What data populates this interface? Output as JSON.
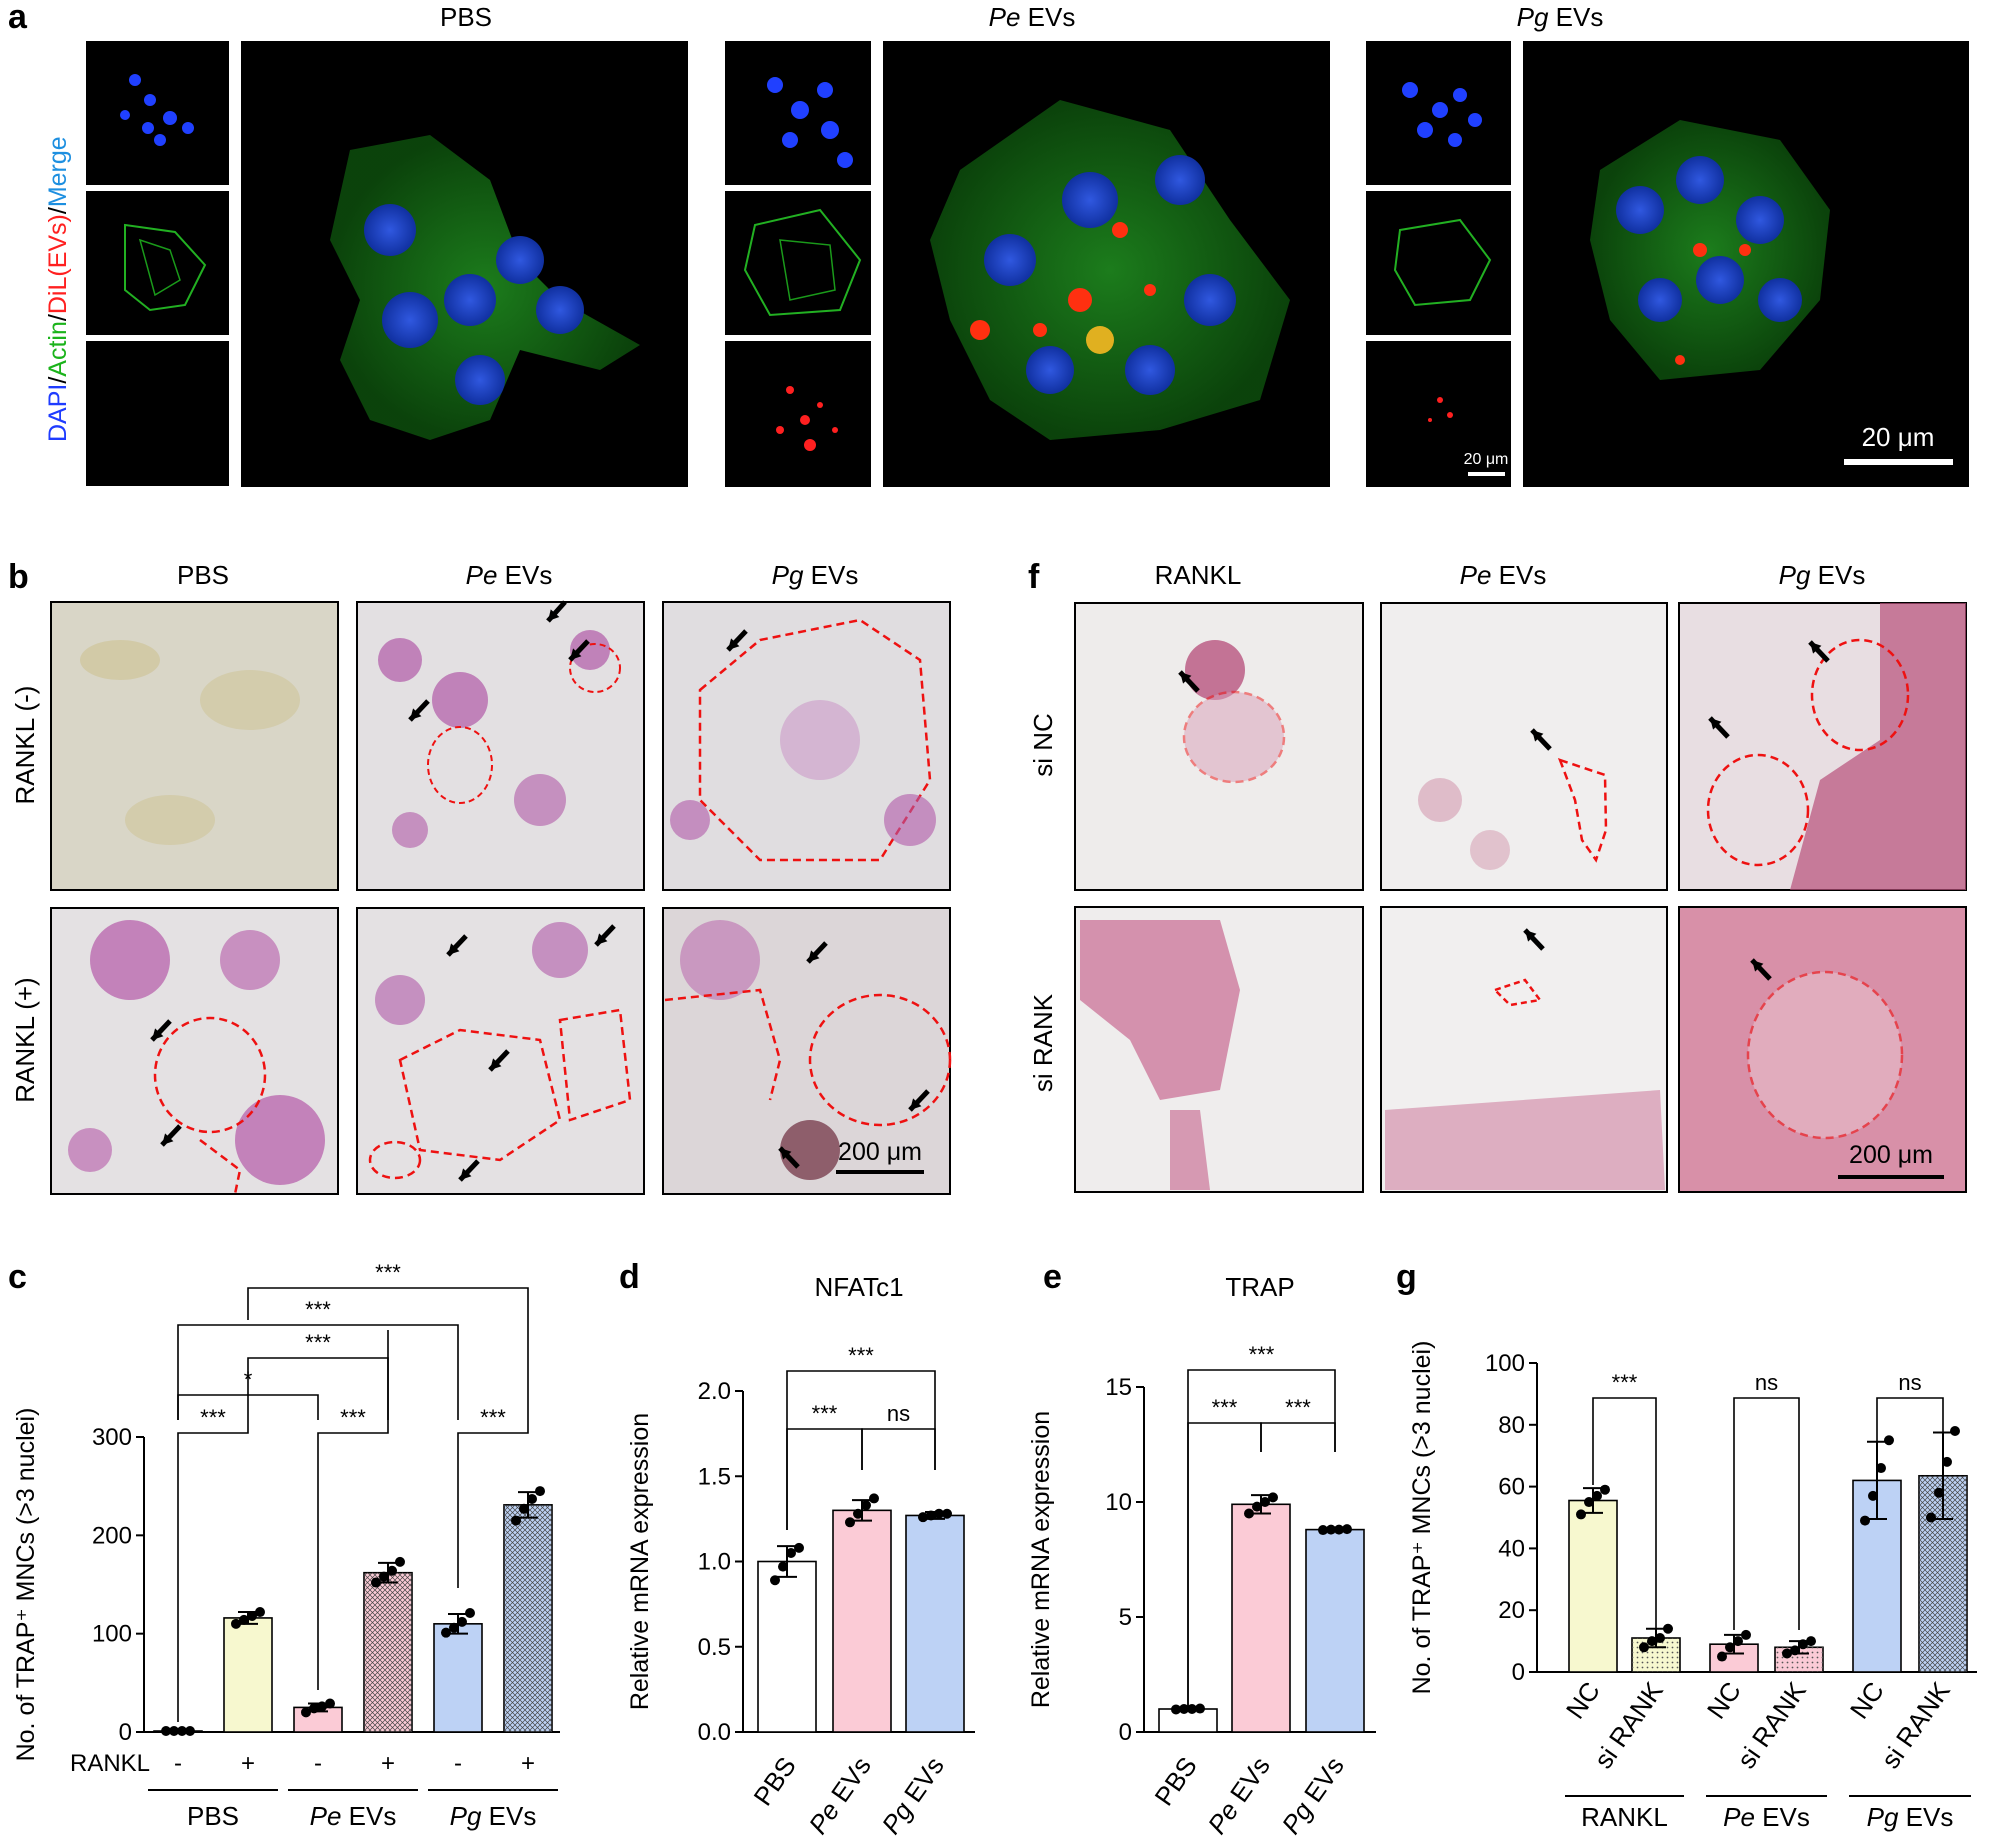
{
  "panel_a": {
    "letter": "a",
    "conditions": [
      {
        "org": "",
        "rest": "PBS"
      },
      {
        "org": "Pe",
        "rest": " EVs"
      },
      {
        "org": "Pg",
        "rest": " EVs"
      }
    ],
    "stain_label": {
      "dapi": "DAPI",
      "s1": "/",
      "actin": "Actin",
      "s2": "/",
      "dil": "DiL(EVs)",
      "s3": "/",
      "merge": "Merge"
    },
    "scale_small": "20 μm",
    "scale_large": "20 μm"
  },
  "panel_b": {
    "letter": "b",
    "columns": [
      {
        "org": "",
        "rest": "PBS"
      },
      {
        "org": "Pe",
        "rest": " EVs"
      },
      {
        "org": "Pg",
        "rest": " EVs"
      }
    ],
    "rows": [
      "RANKL (-)",
      "RANKL (+)"
    ],
    "scale": "200 μm"
  },
  "panel_f": {
    "letter": "f",
    "columns": [
      {
        "org": "",
        "rest": "RANKL"
      },
      {
        "org": "Pe",
        "rest": " EVs"
      },
      {
        "org": "Pg",
        "rest": " EVs"
      }
    ],
    "rows": [
      "si NC",
      "si RANK"
    ],
    "scale": "200 μm"
  },
  "colors": {
    "yellow": "#f7f8cf",
    "pink": "#fbcbd6",
    "blue": "#bdd2f5",
    "white": "#ffffff",
    "dapi": "#1f3cff",
    "actin": "#1bb31b",
    "dil": "#ff2020",
    "merge": "#1d8fe0"
  },
  "chart_data": [
    {
      "panel": "c",
      "type": "bar",
      "title": "",
      "ylabel": "No. of TRAP⁺ MNCs (>3 nuclei)",
      "ylim": [
        0,
        300
      ],
      "yticks": [
        "0",
        "100",
        "200",
        "300"
      ],
      "row_label": "RANKL",
      "rankl_signs": [
        "-",
        "+",
        "-",
        "+",
        "-",
        "+"
      ],
      "groups": [
        {
          "org": "",
          "rest": "PBS"
        },
        {
          "org": "Pe",
          "rest": " EVs"
        },
        {
          "org": "Pg",
          "rest": " EVs"
        }
      ],
      "bars": [
        {
          "value": 1,
          "sd": 0,
          "points": [
            1,
            1,
            1,
            1
          ],
          "color": "#ffffff",
          "pattern": "none"
        },
        {
          "value": 116,
          "sd": 6,
          "points": [
            110,
            114,
            118,
            122
          ],
          "color": "#f7f8cf",
          "pattern": "none"
        },
        {
          "value": 25,
          "sd": 4,
          "points": [
            20,
            24,
            26,
            29
          ],
          "color": "#fbcbd6",
          "pattern": "none"
        },
        {
          "value": 162,
          "sd": 10,
          "points": [
            152,
            158,
            164,
            173
          ],
          "color": "#fbcbd6",
          "pattern": "cross"
        },
        {
          "value": 110,
          "sd": 10,
          "points": [
            101,
            106,
            112,
            121
          ],
          "color": "#bdd2f5",
          "pattern": "none"
        },
        {
          "value": 231,
          "sd": 13,
          "points": [
            215,
            227,
            237,
            245
          ],
          "color": "#bdd2f5",
          "pattern": "cross"
        }
      ],
      "significance": [
        {
          "a": 0,
          "b": 1,
          "label": "***"
        },
        {
          "a": 2,
          "b": 3,
          "label": "***"
        },
        {
          "a": 4,
          "b": 5,
          "label": "***"
        },
        {
          "a": 0,
          "b": 2,
          "label": "*"
        },
        {
          "a": 1,
          "b": 3,
          "label": "***"
        },
        {
          "a": 0,
          "b": 4,
          "label": "***"
        },
        {
          "a": 1,
          "b": 5,
          "label": "***"
        }
      ]
    },
    {
      "panel": "d",
      "type": "bar",
      "title": "NFATc1",
      "ylabel": "Relative mRNA expression",
      "ylim": [
        0,
        2.0
      ],
      "yticks": [
        "0.0",
        "0.5",
        "1.0",
        "1.5",
        "2.0"
      ],
      "categories": [
        {
          "org": "",
          "rest": "PBS"
        },
        {
          "org": "Pe",
          "rest": " EVs"
        },
        {
          "org": "Pg",
          "rest": " EVs"
        }
      ],
      "bars": [
        {
          "value": 1.0,
          "sd": 0.09,
          "points": [
            0.89,
            0.97,
            1.05,
            1.08
          ],
          "color": "#ffffff"
        },
        {
          "value": 1.3,
          "sd": 0.06,
          "points": [
            1.23,
            1.28,
            1.33,
            1.37
          ],
          "color": "#fbcbd6"
        },
        {
          "value": 1.27,
          "sd": 0.02,
          "points": [
            1.26,
            1.27,
            1.28,
            1.28
          ],
          "color": "#bdd2f5"
        }
      ],
      "significance": [
        {
          "a": 0,
          "b": 1,
          "label": "***"
        },
        {
          "a": 1,
          "b": 2,
          "label": "ns"
        },
        {
          "a": 0,
          "b": 2,
          "label": "***"
        }
      ]
    },
    {
      "panel": "e",
      "type": "bar",
      "title": "TRAP",
      "ylabel": "Relative mRNA expression",
      "ylim": [
        0,
        15
      ],
      "yticks": [
        "0",
        "5",
        "10",
        "15"
      ],
      "categories": [
        {
          "org": "",
          "rest": "PBS"
        },
        {
          "org": "Pe",
          "rest": " EVs"
        },
        {
          "org": "Pg",
          "rest": " EVs"
        }
      ],
      "bars": [
        {
          "value": 1.0,
          "sd": 0.03,
          "points": [
            0.98,
            1.0,
            1.0,
            1.02
          ],
          "color": "#ffffff"
        },
        {
          "value": 9.9,
          "sd": 0.4,
          "points": [
            9.5,
            9.8,
            10.0,
            10.2
          ],
          "color": "#fbcbd6"
        },
        {
          "value": 8.8,
          "sd": 0.05,
          "points": [
            8.78,
            8.8,
            8.8,
            8.82
          ],
          "color": "#bdd2f5"
        }
      ],
      "significance": [
        {
          "a": 0,
          "b": 1,
          "label": "***"
        },
        {
          "a": 1,
          "b": 2,
          "label": "***"
        },
        {
          "a": 0,
          "b": 2,
          "label": "***"
        }
      ]
    },
    {
      "panel": "g",
      "type": "bar",
      "title": "",
      "ylabel": "No. of TRAP⁺ MNCs (>3 nuclei)",
      "ylim": [
        0,
        100
      ],
      "yticks": [
        "0",
        "20",
        "40",
        "60",
        "80",
        "100"
      ],
      "bar_labels": [
        "NC",
        "si RANK",
        "NC",
        "si RANK",
        "NC",
        "si RANK"
      ],
      "groups": [
        {
          "org": "",
          "rest": "RANKL"
        },
        {
          "org": "Pe",
          "rest": " EVs"
        },
        {
          "org": "Pg",
          "rest": " EVs"
        }
      ],
      "bars": [
        {
          "value": 55.5,
          "sd": 4,
          "points": [
            51,
            55,
            57,
            59
          ],
          "color": "#f7f8cf",
          "pattern": "none"
        },
        {
          "value": 11,
          "sd": 3,
          "points": [
            8,
            10,
            11,
            14
          ],
          "color": "#f7f8cf",
          "pattern": "dot"
        },
        {
          "value": 9,
          "sd": 3,
          "points": [
            5,
            8,
            10,
            12
          ],
          "color": "#fbcbd6",
          "pattern": "none"
        },
        {
          "value": 8,
          "sd": 2,
          "points": [
            6,
            7,
            9,
            10
          ],
          "color": "#fbcbd6",
          "pattern": "dot"
        },
        {
          "value": 62,
          "sd": 12.5,
          "points": [
            49,
            57,
            66,
            75
          ],
          "color": "#bdd2f5",
          "pattern": "none"
        },
        {
          "value": 63.5,
          "sd": 14,
          "points": [
            50,
            58,
            68,
            78
          ],
          "color": "#bdd2f5",
          "pattern": "cross"
        }
      ],
      "significance": [
        {
          "a": 0,
          "b": 1,
          "label": "***"
        },
        {
          "a": 2,
          "b": 3,
          "label": "ns"
        },
        {
          "a": 4,
          "b": 5,
          "label": "ns"
        }
      ]
    }
  ]
}
